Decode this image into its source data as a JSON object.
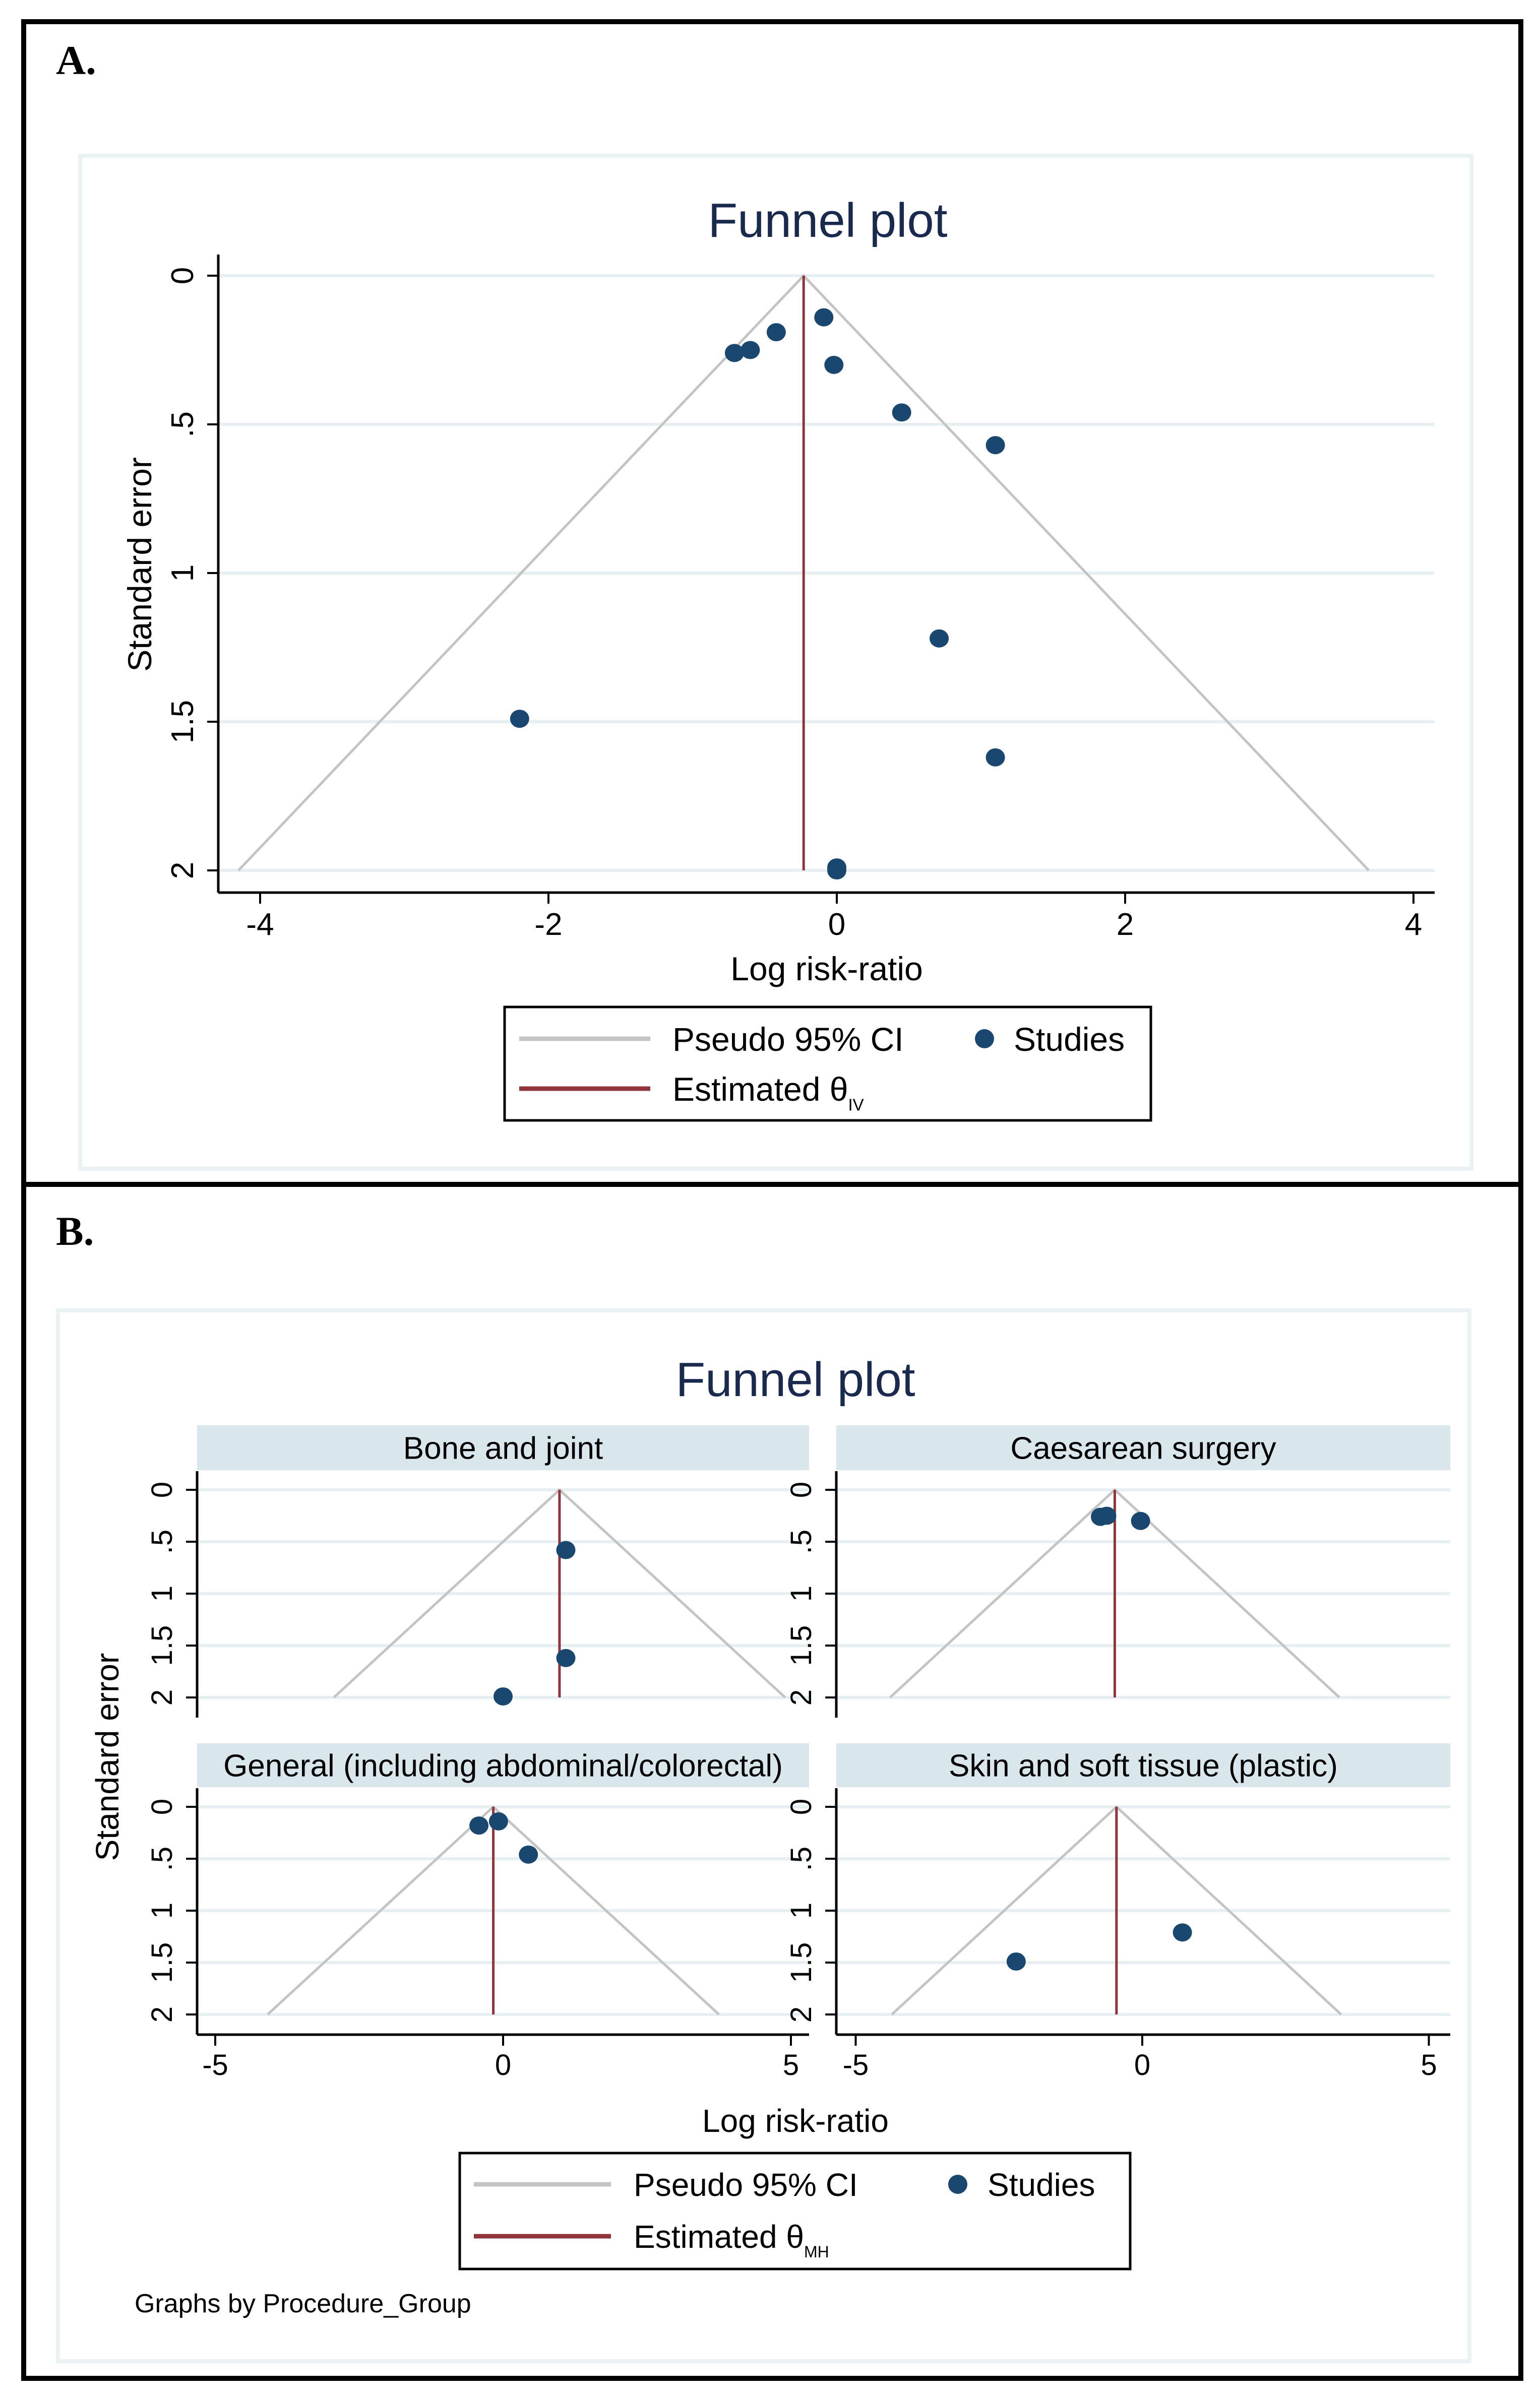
{
  "panels": [
    {
      "label": "A."
    },
    {
      "label": "B."
    }
  ],
  "colors": {
    "points": "#1a476f",
    "estimate_line": "#90353b",
    "funnel": "#c4c4c4",
    "grid": "#e6eff1",
    "strip": "#d9e6eb",
    "title": "#1a2a4f",
    "plot_region_border": "#eaf2f3"
  },
  "chart_data": [
    {
      "type": "scatter",
      "title": "Funnel plot",
      "xlabel": "Log risk-ratio",
      "ylabel": "Standard error",
      "xticks": [
        -4,
        -2,
        0,
        2,
        4
      ],
      "xtick_labels": [
        "-4",
        "-2",
        "0",
        "2",
        "4"
      ],
      "yticks": [
        0,
        0.5,
        1,
        1.5,
        2
      ],
      "ytick_labels": [
        "0",
        ".5",
        "1",
        "1.5",
        "2"
      ],
      "ylim": [
        2,
        0
      ],
      "y_reversed": true,
      "grid": true,
      "theta": -0.23,
      "ci_z": 1.96,
      "legend": {
        "placement": "bottom",
        "ci_label": "Pseudo 95% CI",
        "studies_label": "Studies",
        "estimate_label": "Estimated θ",
        "estimate_subscript": "IV"
      },
      "points": [
        {
          "x": -0.09,
          "y": 0.14
        },
        {
          "x": -0.42,
          "y": 0.19
        },
        {
          "x": -0.6,
          "y": 0.25
        },
        {
          "x": -0.71,
          "y": 0.26
        },
        {
          "x": -0.02,
          "y": 0.3
        },
        {
          "x": 0.45,
          "y": 0.46
        },
        {
          "x": 1.1,
          "y": 0.57
        },
        {
          "x": 0.71,
          "y": 1.22
        },
        {
          "x": -2.2,
          "y": 1.49
        },
        {
          "x": 1.1,
          "y": 1.62
        },
        {
          "x": 0.0,
          "y": 1.99
        },
        {
          "x": 0.0,
          "y": 2.0
        }
      ]
    },
    {
      "type": "scatter",
      "title": "Funnel plot",
      "xlabel": "Log risk-ratio",
      "ylabel": "Standard error",
      "xticks": [
        -5,
        0,
        5
      ],
      "xtick_labels": [
        "-5",
        "0",
        "5"
      ],
      "yticks": [
        0,
        0.5,
        1,
        1.5,
        2
      ],
      "ytick_labels": [
        "0",
        ".5",
        "1",
        "1.5",
        "2"
      ],
      "ylim": [
        2,
        0
      ],
      "y_reversed": true,
      "grid": true,
      "ci_z": 1.96,
      "note": "Graphs by Procedure_Group",
      "legend": {
        "placement": "bottom",
        "ci_label": "Pseudo 95% CI",
        "studies_label": "Studies",
        "estimate_label": "Estimated θ",
        "estimate_subscript": "MH"
      },
      "facets": [
        {
          "name": "Bone and joint",
          "theta": 0.98,
          "points": [
            {
              "x": 1.09,
              "y": 0.58
            },
            {
              "x": 1.09,
              "y": 1.62
            },
            {
              "x": 0.0,
              "y": 1.99
            }
          ]
        },
        {
          "name": "Caesarean surgery",
          "theta": -0.48,
          "points": [
            {
              "x": -0.73,
              "y": 0.26
            },
            {
              "x": -0.62,
              "y": 0.25
            },
            {
              "x": -0.03,
              "y": 0.3
            }
          ]
        },
        {
          "name": "General (including abdominal/colorectal)",
          "theta": -0.17,
          "points": [
            {
              "x": -0.42,
              "y": 0.18
            },
            {
              "x": -0.08,
              "y": 0.14
            },
            {
              "x": 0.44,
              "y": 0.46
            }
          ]
        },
        {
          "name": "Skin and soft tissue (plastic)",
          "theta": -0.45,
          "points": [
            {
              "x": 0.7,
              "y": 1.21
            },
            {
              "x": -2.2,
              "y": 1.49
            }
          ]
        }
      ]
    }
  ]
}
